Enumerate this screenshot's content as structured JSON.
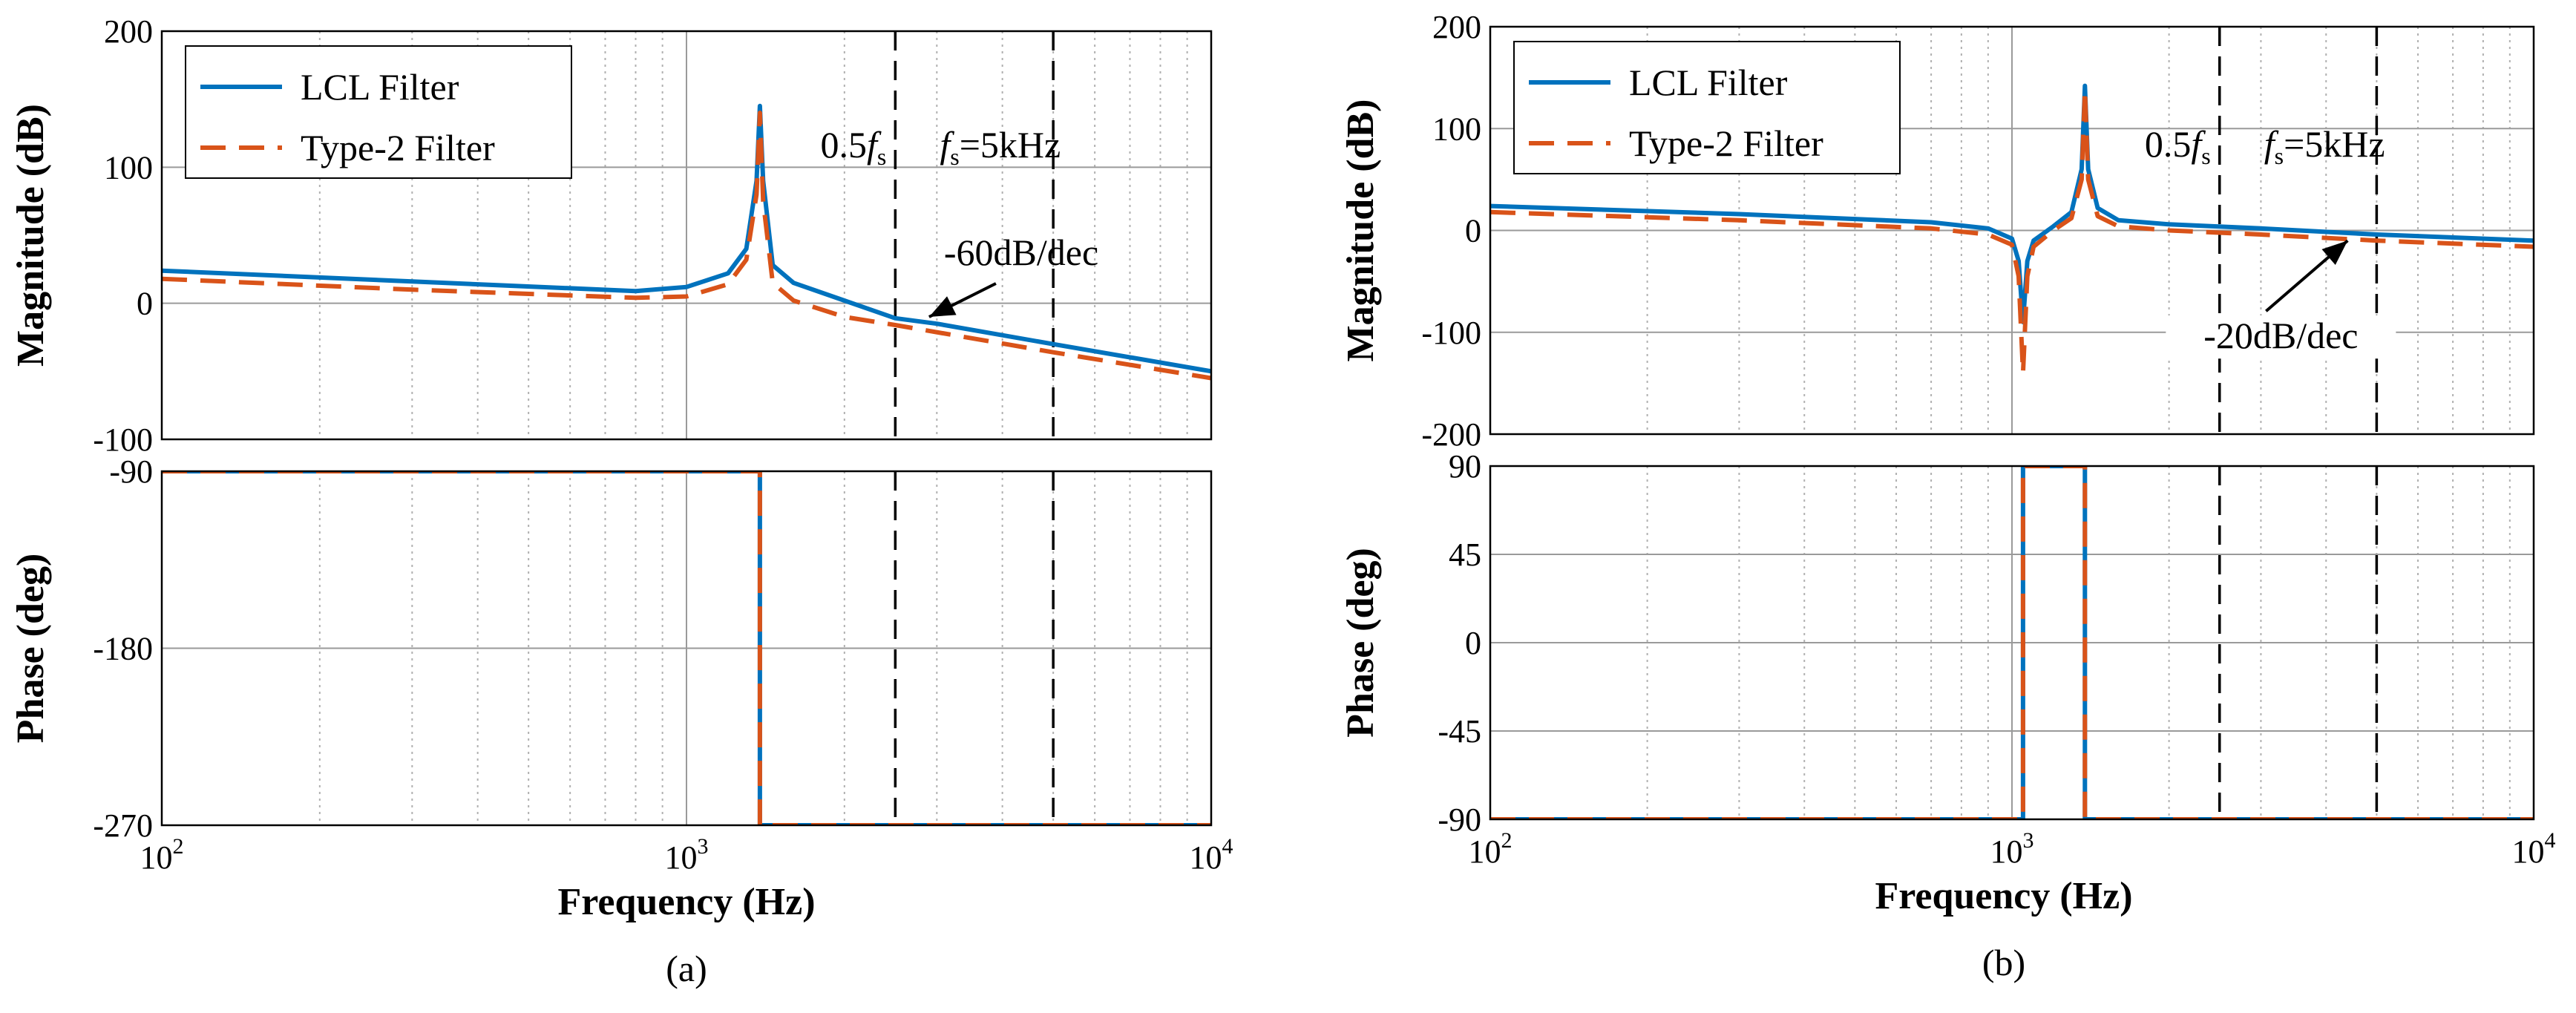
{
  "chart_data": [
    {
      "id": "a",
      "caption": "(a)",
      "type": "line",
      "xlabel": "Frequency  (Hz)",
      "xscale": "log",
      "xlim": [
        100,
        10000
      ],
      "x_ticks": [
        {
          "base": "10",
          "exp": "2",
          "value": 100
        },
        {
          "base": "10",
          "exp": "3",
          "value": 1000
        },
        {
          "base": "10",
          "exp": "4",
          "value": 10000
        }
      ],
      "legend": [
        "LCL Filter",
        "Type-2 Filter"
      ],
      "colors": {
        "lcl": "#0072BD",
        "type2": "#D95319"
      },
      "vlines": [
        {
          "x": 2500,
          "label_main": "0.5",
          "label_f": "f",
          "label_sub": "s",
          "label_rest": ""
        },
        {
          "x": 5000,
          "label_main": "",
          "label_f": "f",
          "label_sub": "s",
          "label_rest": "=5kHz"
        }
      ],
      "magnitude": {
        "ylabel": "Magnitude (dB)",
        "ylim": [
          -100,
          200
        ],
        "yticks": [
          -100,
          0,
          100,
          200
        ],
        "annotation": {
          "text": "-60dB/dec",
          "at": [
            2900,
            -10
          ]
        },
        "series": [
          {
            "name": "LCL Filter",
            "key": "lcl",
            "resonance": 1380,
            "points": [
              [
                100,
                24
              ],
              [
                300,
                16
              ],
              [
                800,
                9
              ],
              [
                1000,
                12
              ],
              [
                1200,
                22
              ],
              [
                1300,
                40
              ],
              [
                1360,
                90
              ],
              [
                1380,
                145
              ],
              [
                1400,
                90
              ],
              [
                1460,
                28
              ],
              [
                1600,
                15
              ],
              [
                2000,
                2
              ],
              [
                2500,
                -11
              ],
              [
                3000,
                -15
              ],
              [
                5000,
                -30
              ],
              [
                10000,
                -50
              ]
            ]
          },
          {
            "name": "Type-2 Filter",
            "key": "type2",
            "resonance": 1380,
            "points": [
              [
                100,
                18
              ],
              [
                300,
                10
              ],
              [
                800,
                4
              ],
              [
                1000,
                5
              ],
              [
                1200,
                14
              ],
              [
                1300,
                32
              ],
              [
                1360,
                80
              ],
              [
                1380,
                140
              ],
              [
                1400,
                75
              ],
              [
                1460,
                15
              ],
              [
                1600,
                2
              ],
              [
                2000,
                -10
              ],
              [
                2500,
                -16
              ],
              [
                5000,
                -36
              ],
              [
                10000,
                -55
              ]
            ]
          }
        ]
      },
      "phase": {
        "ylabel": "Phase (deg)",
        "ylim": [
          -270,
          -90
        ],
        "yticks": [
          -270,
          -180,
          -90
        ],
        "series": [
          {
            "name": "LCL Filter",
            "key": "lcl",
            "points": [
              [
                100,
                -90
              ],
              [
                1380,
                -90
              ],
              [
                1380,
                -270
              ],
              [
                10000,
                -270
              ]
            ]
          },
          {
            "name": "Type-2 Filter",
            "key": "type2",
            "points": [
              [
                100,
                -90
              ],
              [
                1380,
                -90
              ],
              [
                1380,
                -270
              ],
              [
                10000,
                -270
              ]
            ]
          }
        ]
      }
    },
    {
      "id": "b",
      "caption": "(b)",
      "type": "line",
      "xlabel": "Frequency  (Hz)",
      "xscale": "log",
      "xlim": [
        100,
        10000
      ],
      "x_ticks": [
        {
          "base": "10",
          "exp": "2",
          "value": 100
        },
        {
          "base": "10",
          "exp": "3",
          "value": 1000
        },
        {
          "base": "10",
          "exp": "4",
          "value": 10000
        }
      ],
      "legend": [
        "LCL Filter",
        "Type-2 Filter"
      ],
      "colors": {
        "lcl": "#0072BD",
        "type2": "#D95319"
      },
      "vlines": [
        {
          "x": 2500,
          "label_main": "0.5",
          "label_f": "f",
          "label_sub": "s",
          "label_rest": ""
        },
        {
          "x": 5000,
          "label_main": "",
          "label_f": "f",
          "label_sub": "s",
          "label_rest": "=5kHz"
        }
      ],
      "magnitude": {
        "ylabel": "Magnitude (dB)",
        "ylim": [
          -200,
          200
        ],
        "yticks": [
          -200,
          -100,
          0,
          100,
          200
        ],
        "annotation": {
          "text": "-20dB/dec",
          "at": [
            4400,
            -10
          ]
        },
        "series": [
          {
            "name": "LCL Filter",
            "key": "lcl",
            "points": [
              [
                100,
                24
              ],
              [
                300,
                16
              ],
              [
                700,
                8
              ],
              [
                900,
                2
              ],
              [
                1000,
                -8
              ],
              [
                1030,
                -30
              ],
              [
                1050,
                -90
              ],
              [
                1070,
                -30
              ],
              [
                1100,
                -10
              ],
              [
                1200,
                4
              ],
              [
                1300,
                18
              ],
              [
                1360,
                60
              ],
              [
                1380,
                142
              ],
              [
                1400,
                60
              ],
              [
                1460,
                22
              ],
              [
                1600,
                10
              ],
              [
                2000,
                6
              ],
              [
                3000,
                2
              ],
              [
                5000,
                -4
              ],
              [
                10000,
                -10
              ]
            ]
          },
          {
            "name": "Type-2 Filter",
            "key": "type2",
            "points": [
              [
                100,
                18
              ],
              [
                300,
                10
              ],
              [
                700,
                2
              ],
              [
                900,
                -4
              ],
              [
                1000,
                -14
              ],
              [
                1030,
                -45
              ],
              [
                1050,
                -140
              ],
              [
                1070,
                -45
              ],
              [
                1100,
                -16
              ],
              [
                1200,
                0
              ],
              [
                1300,
                12
              ],
              [
                1360,
                50
              ],
              [
                1380,
                138
              ],
              [
                1400,
                50
              ],
              [
                1460,
                14
              ],
              [
                1600,
                4
              ],
              [
                2000,
                0
              ],
              [
                3000,
                -4
              ],
              [
                5000,
                -10
              ],
              [
                10000,
                -16
              ]
            ]
          }
        ]
      },
      "phase": {
        "ylabel": "Phase (deg)",
        "ylim": [
          -90,
          90
        ],
        "yticks": [
          -90,
          -45,
          0,
          45,
          90
        ],
        "series": [
          {
            "name": "LCL Filter",
            "key": "lcl",
            "points": [
              [
                100,
                -90
              ],
              [
                1050,
                -90
              ],
              [
                1050,
                90
              ],
              [
                1380,
                90
              ],
              [
                1380,
                -90
              ],
              [
                10000,
                -90
              ]
            ]
          },
          {
            "name": "Type-2 Filter",
            "key": "type2",
            "points": [
              [
                100,
                -90
              ],
              [
                1050,
                -90
              ],
              [
                1050,
                90
              ],
              [
                1380,
                90
              ],
              [
                1380,
                -90
              ],
              [
                10000,
                -90
              ]
            ]
          }
        ]
      }
    }
  ]
}
